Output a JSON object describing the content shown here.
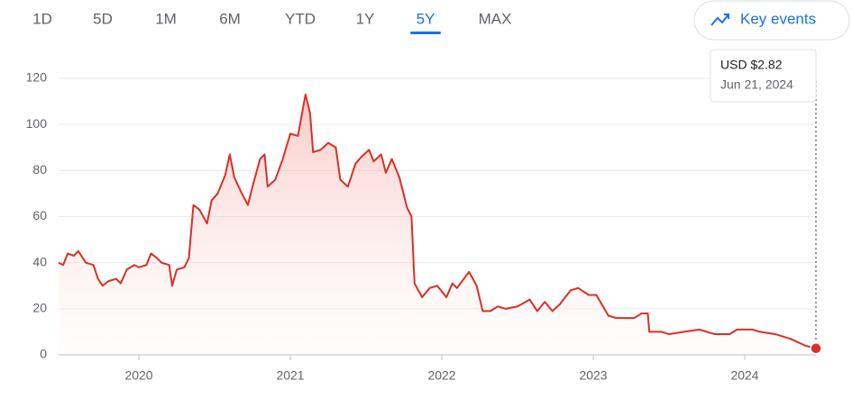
{
  "tabs": [
    "1D",
    "5D",
    "1M",
    "6M",
    "YTD",
    "1Y",
    "5Y",
    "MAX"
  ],
  "selected_tab": "5Y",
  "key_events": "Key events",
  "tooltip": {
    "price": "USD $2.82",
    "date": "Jun 21, 2024"
  },
  "chart_data": {
    "type": "area",
    "color": "#d93025",
    "x": [
      2019.47,
      2019.5,
      2019.53,
      2019.57,
      2019.6,
      2019.65,
      2019.7,
      2019.73,
      2019.76,
      2019.8,
      2019.85,
      2019.88,
      2019.92,
      2019.97,
      2020.0,
      2020.05,
      2020.08,
      2020.12,
      2020.15,
      2020.2,
      2020.22,
      2020.25,
      2020.3,
      2020.33,
      2020.36,
      2020.4,
      2020.45,
      2020.48,
      2020.52,
      2020.57,
      2020.6,
      2020.63,
      2020.68,
      2020.72,
      2020.75,
      2020.8,
      2020.83,
      2020.85,
      2020.9,
      2020.95,
      2021.0,
      2021.05,
      2021.1,
      2021.13,
      2021.15,
      2021.2,
      2021.25,
      2021.3,
      2021.33,
      2021.38,
      2021.43,
      2021.47,
      2021.52,
      2021.55,
      2021.6,
      2021.63,
      2021.67,
      2021.72,
      2021.77,
      2021.8,
      2021.82,
      2021.87,
      2021.92,
      2021.97,
      2022.03,
      2022.07,
      2022.1,
      2022.18,
      2022.23,
      2022.27,
      2022.32,
      2022.37,
      2022.42,
      2022.5,
      2022.58,
      2022.63,
      2022.68,
      2022.73,
      2022.78,
      2022.85,
      2022.9,
      2022.97,
      2023.02,
      2023.1,
      2023.15,
      2023.2,
      2023.27,
      2023.32,
      2023.36,
      2023.37,
      2023.45,
      2023.5,
      2023.6,
      2023.7,
      2023.8,
      2023.9,
      2023.95,
      2024.0,
      2024.05,
      2024.1,
      2024.2,
      2024.3,
      2024.4,
      2024.47
    ],
    "values": [
      40,
      39,
      44,
      43,
      45,
      40,
      39,
      33,
      30,
      32,
      33,
      31,
      37,
      39,
      38,
      39,
      44,
      42,
      40,
      39,
      30,
      37,
      38,
      42,
      65,
      63,
      57,
      67,
      70,
      78,
      87,
      77,
      70,
      65,
      73,
      85,
      87,
      73,
      76,
      85,
      96,
      95,
      113,
      105,
      88,
      89,
      92,
      90,
      76,
      73,
      83,
      86,
      89,
      84,
      87,
      79,
      85,
      77,
      64,
      60,
      31,
      25,
      29,
      30,
      25,
      31,
      29,
      36,
      30,
      19,
      19,
      21,
      20,
      21,
      24,
      19,
      23,
      19,
      22,
      28,
      29,
      26,
      26,
      17,
      16,
      16,
      16,
      18,
      18,
      10,
      10,
      9,
      10,
      11,
      9,
      9,
      11,
      11,
      11,
      10,
      9,
      7,
      4,
      2.82
    ],
    "xlim": [
      2019.47,
      2024.47
    ],
    "xticks": [
      2020,
      2021,
      2022,
      2023,
      2024
    ],
    "ylim": [
      0,
      120
    ],
    "yticks": [
      0,
      20,
      40,
      60,
      80,
      100,
      120
    ],
    "grid": true
  }
}
